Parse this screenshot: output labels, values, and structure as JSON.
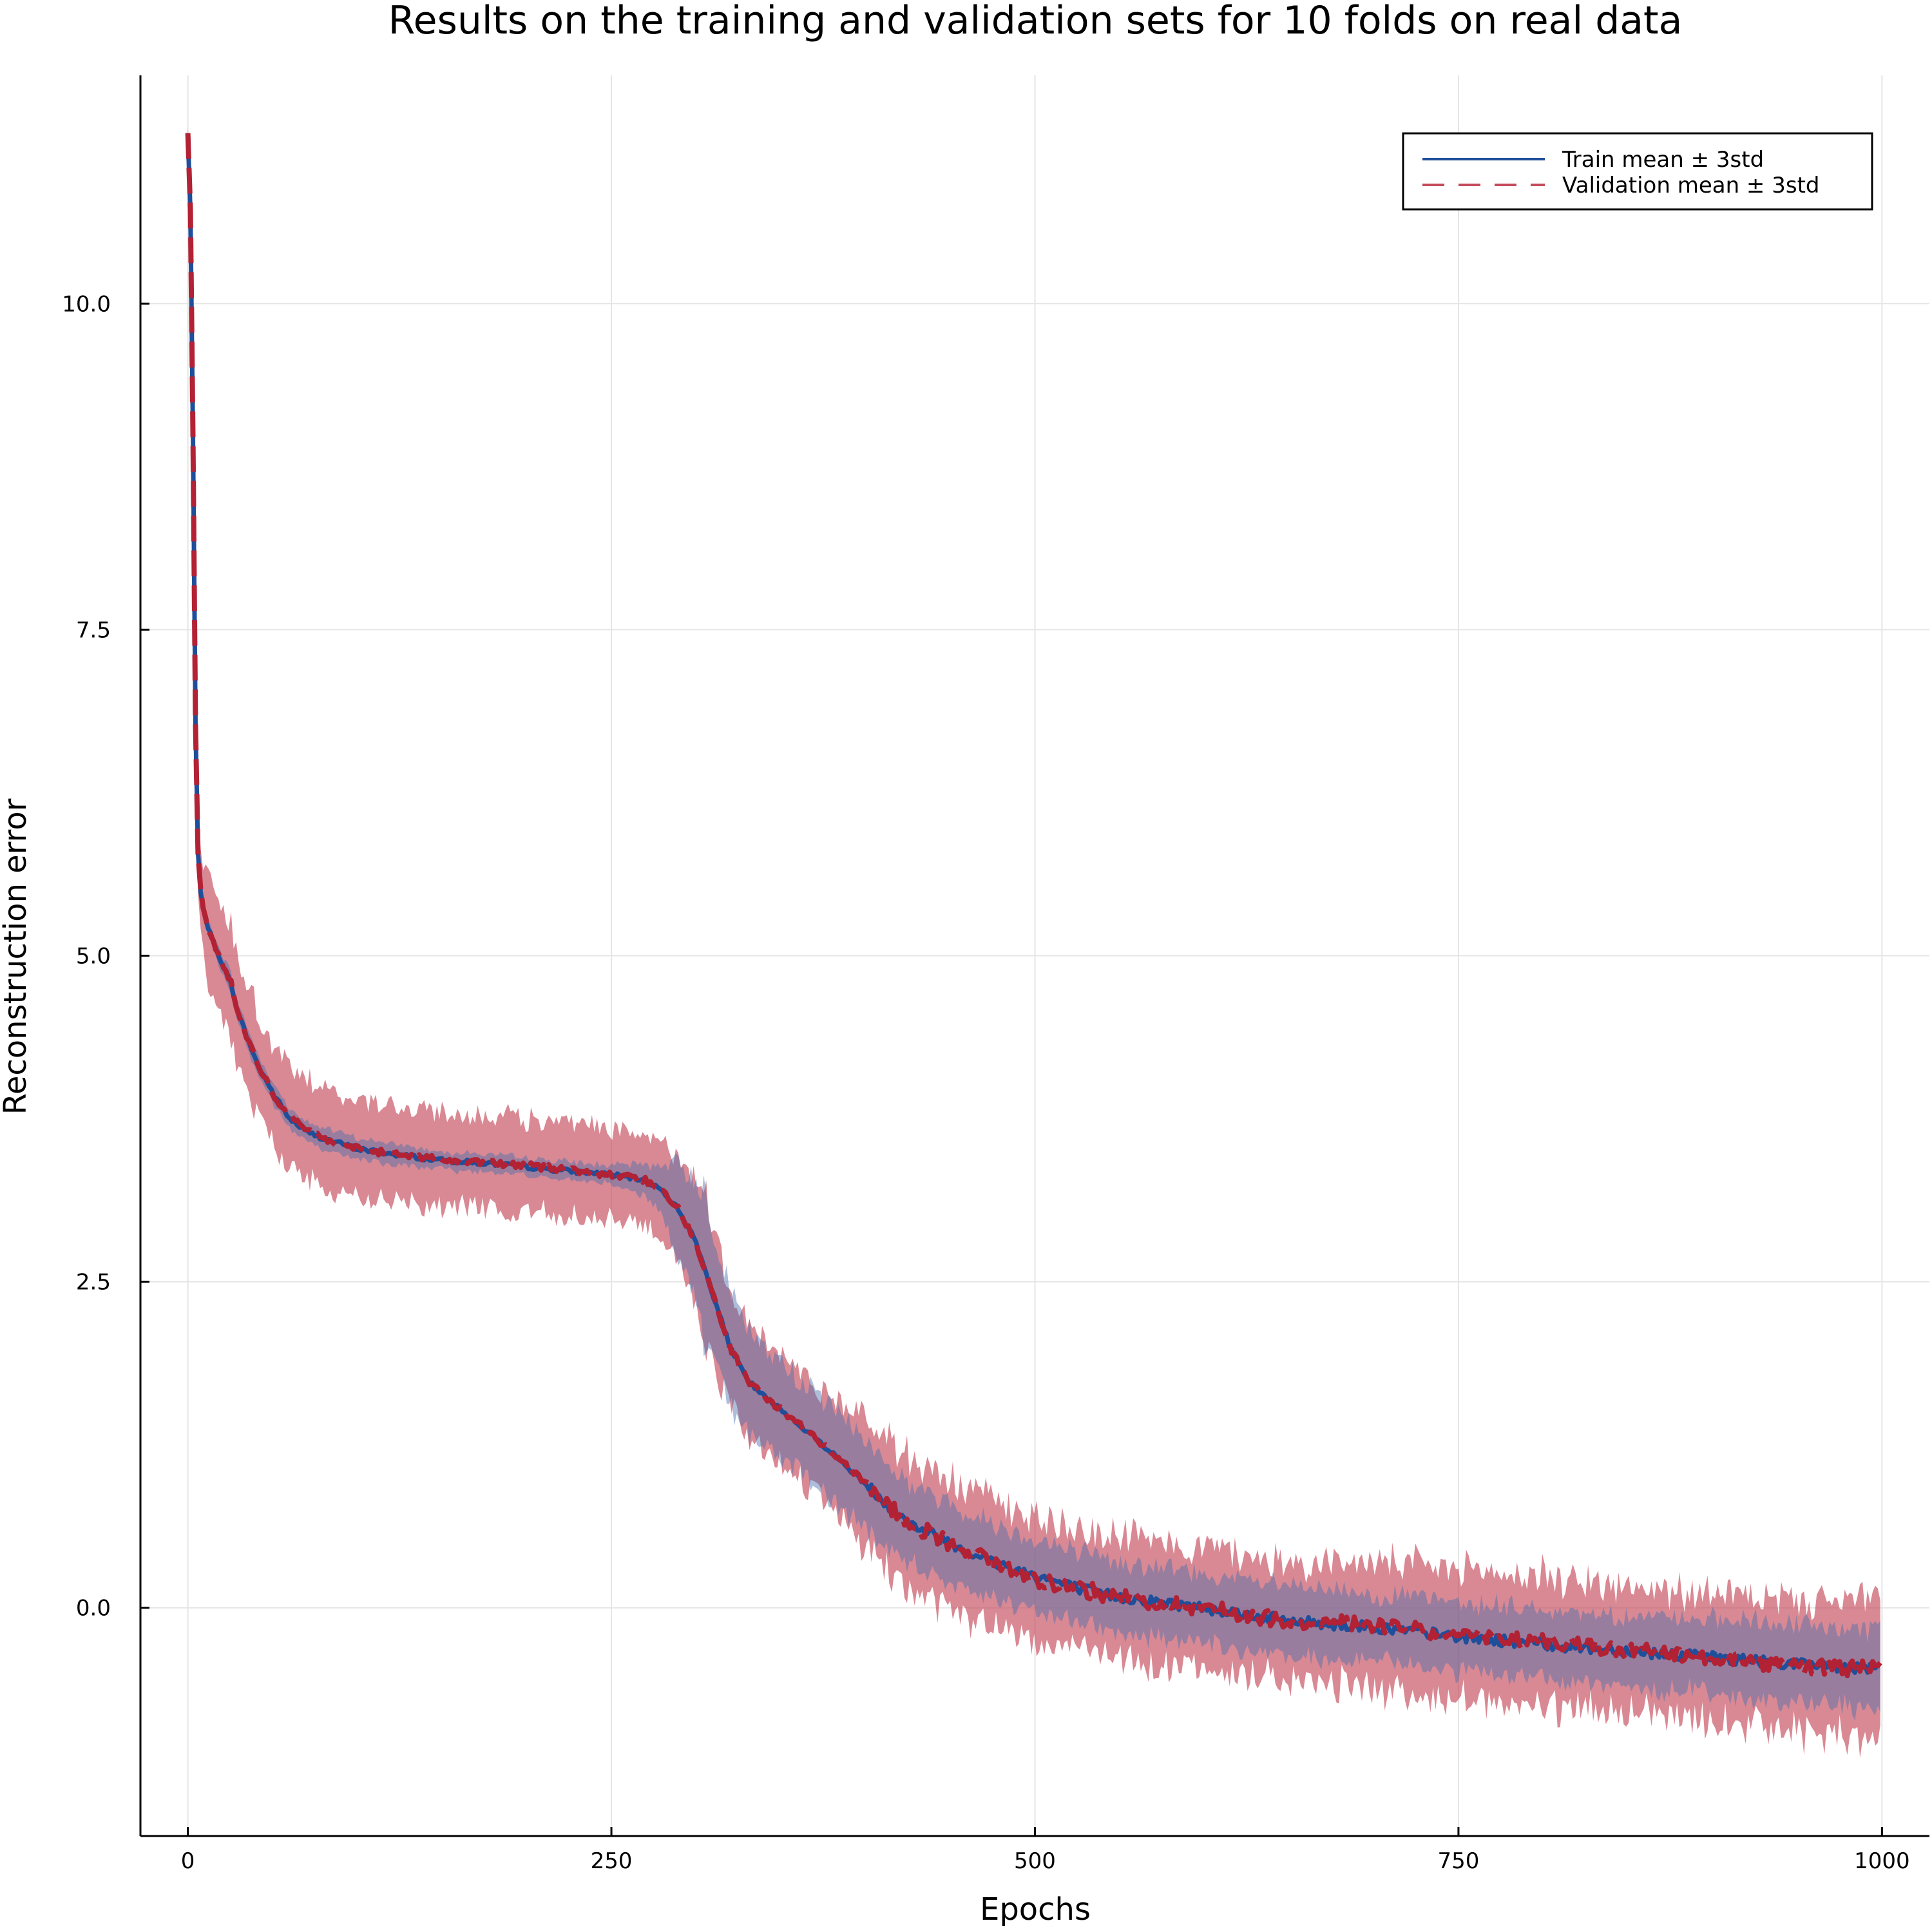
{
  "chart_data": {
    "type": "line",
    "title": "Results on the training and validation sets for 10 folds on real data",
    "xlabel": "Epochs",
    "ylabel": "Reconstruction error",
    "xlim": [
      -28,
      1028
    ],
    "ylim": [
      -1.75,
      11.75
    ],
    "xticks": [
      0,
      250,
      500,
      750,
      1000
    ],
    "xtick_labels": [
      "0",
      "250",
      "500",
      "750",
      "1000"
    ],
    "yticks": [
      0,
      2.5,
      5,
      7.5,
      10
    ],
    "ytick_labels": [
      "0.0",
      "2.5",
      "5.0",
      "7.5",
      "10.0"
    ],
    "grid": true,
    "legend_position": "top-right",
    "colors": {
      "train_line": "#1f4e9a",
      "train_band": "#4a6fae",
      "val_line": "#b22234",
      "val_band": "#c44a5a",
      "axis": "#000000",
      "grid": "#e5e5e5"
    },
    "series": [
      {
        "name": "Train mean ± 3std",
        "line_style": "solid",
        "x": [
          0,
          2,
          5,
          8,
          10,
          15,
          20,
          25,
          30,
          40,
          50,
          60,
          70,
          80,
          100,
          120,
          150,
          175,
          200,
          225,
          250,
          270,
          280,
          290,
          300,
          305,
          310,
          320,
          330,
          340,
          350,
          375,
          400,
          425,
          450,
          475,
          500,
          525,
          550,
          600,
          650,
          700,
          750,
          800,
          850,
          900,
          950,
          975,
          1000
        ],
        "mean": [
          11.3,
          10.5,
          6.0,
          5.4,
          5.3,
          5.1,
          4.95,
          4.8,
          4.55,
          4.2,
          3.95,
          3.75,
          3.65,
          3.6,
          3.52,
          3.48,
          3.43,
          3.41,
          3.38,
          3.35,
          3.32,
          3.28,
          3.2,
          3.05,
          2.8,
          2.6,
          2.4,
          2.0,
          1.75,
          1.62,
          1.52,
          1.25,
          0.95,
          0.65,
          0.5,
          0.35,
          0.25,
          0.15,
          0.08,
          0.0,
          -0.1,
          -0.15,
          -0.22,
          -0.28,
          -0.33,
          -0.38,
          -0.43,
          -0.45,
          -0.48
        ],
        "std3": [
          0.05,
          0.05,
          0.05,
          0.05,
          0.05,
          0.06,
          0.07,
          0.08,
          0.08,
          0.08,
          0.08,
          0.08,
          0.08,
          0.08,
          0.08,
          0.08,
          0.07,
          0.07,
          0.07,
          0.07,
          0.07,
          0.12,
          0.2,
          0.35,
          0.5,
          0.6,
          0.55,
          0.45,
          0.4,
          0.38,
          0.36,
          0.35,
          0.35,
          0.3,
          0.3,
          0.3,
          0.28,
          0.28,
          0.27,
          0.26,
          0.26,
          0.26,
          0.26,
          0.27,
          0.27,
          0.28,
          0.3,
          0.3,
          0.3
        ]
      },
      {
        "name": "Validation mean ± 3std",
        "line_style": "dashed",
        "x": [
          0,
          2,
          5,
          8,
          10,
          15,
          20,
          25,
          30,
          40,
          50,
          60,
          70,
          80,
          100,
          120,
          150,
          175,
          200,
          225,
          250,
          270,
          280,
          290,
          300,
          305,
          310,
          320,
          330,
          340,
          350,
          375,
          400,
          425,
          450,
          475,
          500,
          525,
          550,
          600,
          650,
          700,
          750,
          800,
          850,
          900,
          950,
          975,
          1000
        ],
        "mean": [
          11.3,
          10.5,
          6.0,
          5.4,
          5.3,
          5.1,
          4.95,
          4.82,
          4.55,
          4.2,
          3.95,
          3.76,
          3.66,
          3.6,
          3.52,
          3.48,
          3.44,
          3.41,
          3.39,
          3.36,
          3.32,
          3.28,
          3.2,
          3.05,
          2.8,
          2.6,
          2.4,
          2.0,
          1.75,
          1.62,
          1.52,
          1.25,
          0.95,
          0.65,
          0.5,
          0.35,
          0.22,
          0.15,
          0.08,
          0.0,
          -0.1,
          -0.13,
          -0.22,
          -0.25,
          -0.33,
          -0.38,
          -0.45,
          -0.47,
          -0.45
        ],
        "std3": [
          0.05,
          0.1,
          0.25,
          0.35,
          0.38,
          0.4,
          0.42,
          0.45,
          0.45,
          0.42,
          0.38,
          0.38,
          0.38,
          0.38,
          0.37,
          0.37,
          0.36,
          0.36,
          0.35,
          0.35,
          0.33,
          0.33,
          0.35,
          0.42,
          0.55,
          0.6,
          0.55,
          0.45,
          0.42,
          0.42,
          0.42,
          0.42,
          0.5,
          0.52,
          0.5,
          0.48,
          0.48,
          0.48,
          0.48,
          0.46,
          0.45,
          0.48,
          0.5,
          0.5,
          0.48,
          0.48,
          0.5,
          0.52,
          0.55
        ]
      }
    ]
  }
}
